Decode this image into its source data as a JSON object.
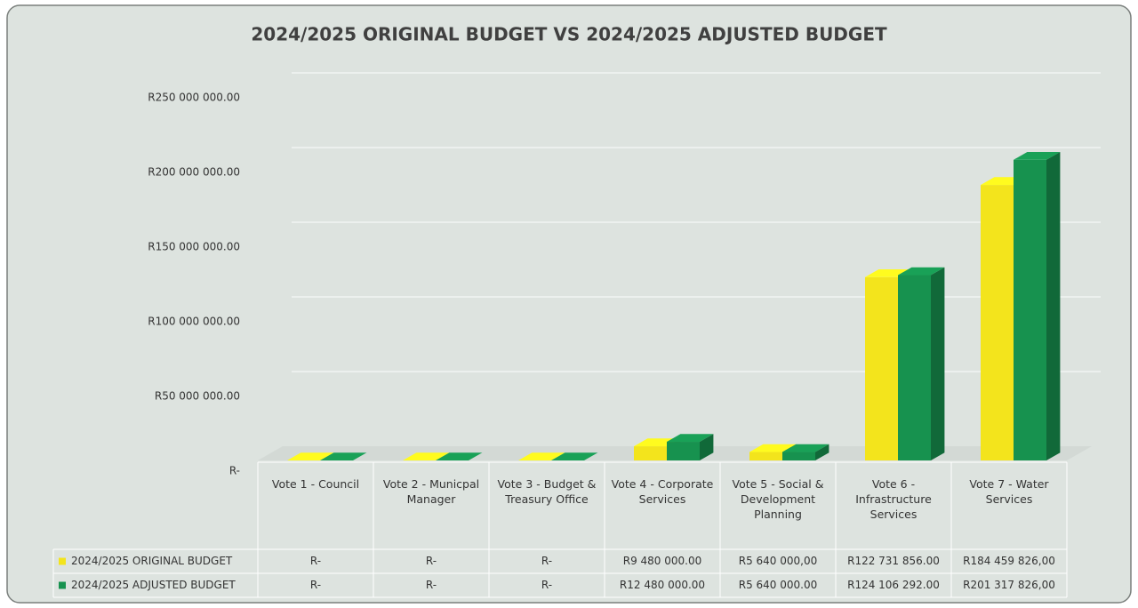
{
  "chart_data": {
    "type": "bar3d",
    "title": "2024/2025 ORIGINAL BUDGET VS 2024/2025 ADJUSTED BUDGET",
    "categories": [
      "Vote 1 - Council",
      "Vote 2 - Municpal Manager",
      "Vote 3 - Budget & Treasury Office",
      "Vote 4 - Corporate Services",
      "Vote 5 - Social & Development Planning",
      "Vote 6 - Infrastructure Services",
      "Vote 7 - Water Services"
    ],
    "series": [
      {
        "name": "2024/2025 ORIGINAL BUDGET",
        "color": "#f3e41c",
        "values": [
          0,
          0,
          0,
          9480000,
          5640000,
          122731856,
          184459826
        ],
        "value_labels": [
          "R-",
          "R-",
          "R-",
          "R9 480 000.00",
          "R5 640 000,00",
          "R122 731 856.00",
          "R184 459 826,00"
        ]
      },
      {
        "name": "2024/2025 ADJUSTED BUDGET",
        "color": "#17924f",
        "values": [
          0,
          0,
          0,
          12480000,
          5640000,
          124106292,
          201317826
        ],
        "value_labels": [
          "R-",
          "R-",
          "R-",
          "R12 480 000.00",
          "R5 640 000.00",
          "R124 106 292.00",
          "R201 317 826,00"
        ]
      }
    ],
    "ylim": [
      0,
      250000000
    ],
    "yticks": [
      {
        "value": 0,
        "label": "R-"
      },
      {
        "value": 50000000,
        "label": "R50 000 000.00"
      },
      {
        "value": 100000000,
        "label": "R100 000 000.00"
      },
      {
        "value": 150000000,
        "label": "R150 000 000.00"
      },
      {
        "value": 200000000,
        "label": "R200 000 000.00"
      },
      {
        "value": 250000000,
        "label": "R250 000 000.00"
      }
    ],
    "grid": true
  }
}
